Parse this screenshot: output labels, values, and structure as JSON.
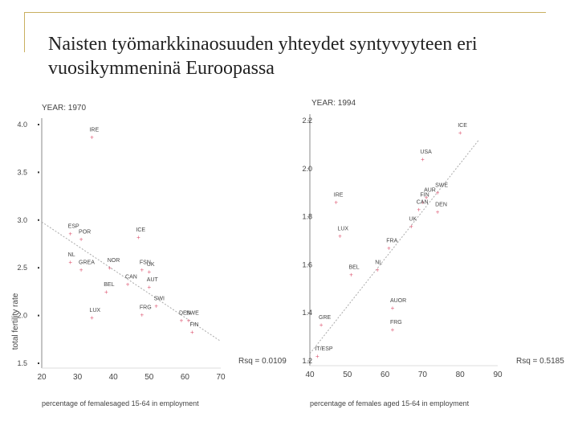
{
  "slide": {
    "title_line1": "Naisten työmarkkinaosuuden yhteydet syntyvyyteen eri",
    "title_line2": "vuosikymmeninä Euroopassa"
  },
  "chart_data": [
    {
      "type": "scatter",
      "title": "YEAR: 1970",
      "xlabel": "percentage of femalesaged 15-64 in employment",
      "ylabel": "total fertility rate",
      "xlim": [
        20,
        70
      ],
      "ylim": [
        1.5,
        4.0
      ],
      "xticks": [
        "20",
        "30",
        "40",
        "50",
        "60",
        "70"
      ],
      "yticks": [
        "1.5",
        "2.0",
        "2.5",
        "3.0",
        "3.5",
        "4.0"
      ],
      "annotation": "Rsq = 0.0109",
      "trend": [
        [
          20,
          2.98
        ],
        [
          70,
          1.73
        ]
      ],
      "points": [
        {
          "label": "IRE",
          "x": 34,
          "y": 3.87
        },
        {
          "label": "ESP",
          "x": 28,
          "y": 2.86
        },
        {
          "label": "POR",
          "x": 31,
          "y": 2.8
        },
        {
          "label": "ICE",
          "x": 47,
          "y": 2.82
        },
        {
          "label": "NL",
          "x": 28,
          "y": 2.56
        },
        {
          "label": "GREA",
          "x": 31,
          "y": 2.48
        },
        {
          "label": "NOR",
          "x": 39,
          "y": 2.5
        },
        {
          "label": "FSN",
          "x": 48,
          "y": 2.48
        },
        {
          "label": "UK",
          "x": 50,
          "y": 2.46
        },
        {
          "label": "AUT",
          "x": 50,
          "y": 2.3
        },
        {
          "label": "BEL",
          "x": 38,
          "y": 2.25
        },
        {
          "label": "CAN",
          "x": 44,
          "y": 2.33
        },
        {
          "label": "SWI",
          "x": 52,
          "y": 2.1
        },
        {
          "label": "FRG",
          "x": 48,
          "y": 2.01
        },
        {
          "label": "LUX",
          "x": 34,
          "y": 1.98
        },
        {
          "label": "DEN",
          "x": 59,
          "y": 1.95
        },
        {
          "label": "SWE",
          "x": 61,
          "y": 1.95
        },
        {
          "label": "FIN",
          "x": 62,
          "y": 1.83
        }
      ]
    },
    {
      "type": "scatter",
      "title": "YEAR: 1994",
      "xlabel": "percentage of females aged 15-64 in employment",
      "ylabel": "",
      "xlim": [
        40,
        90
      ],
      "ylim": [
        1.2,
        2.2
      ],
      "xticks": [
        "40",
        "50",
        "60",
        "70",
        "80",
        "90"
      ],
      "yticks": [
        "1.2",
        "1.4",
        "1.6",
        "1.8",
        "2.0",
        "2.2"
      ],
      "annotation": "Rsq = 0.5185",
      "trend": [
        [
          40,
          1.23
        ],
        [
          85,
          2.12
        ]
      ],
      "points": [
        {
          "label": "ICE",
          "x": 80,
          "y": 2.15
        },
        {
          "label": "USA",
          "x": 70,
          "y": 2.04
        },
        {
          "label": "SWE",
          "x": 74,
          "y": 1.9
        },
        {
          "label": "AUR",
          "x": 71,
          "y": 1.88
        },
        {
          "label": "FIN",
          "x": 70,
          "y": 1.86
        },
        {
          "label": "IRE",
          "x": 47,
          "y": 1.86
        },
        {
          "label": "CAN",
          "x": 69,
          "y": 1.83
        },
        {
          "label": "DEN",
          "x": 74,
          "y": 1.82
        },
        {
          "label": "UK",
          "x": 67,
          "y": 1.76
        },
        {
          "label": "LUX",
          "x": 48,
          "y": 1.72
        },
        {
          "label": "FRA",
          "x": 61,
          "y": 1.67
        },
        {
          "label": "NL",
          "x": 58,
          "y": 1.58
        },
        {
          "label": "BEL",
          "x": 51,
          "y": 1.56
        },
        {
          "label": "AUOR",
          "x": 62,
          "y": 1.42
        },
        {
          "label": "FRG",
          "x": 62,
          "y": 1.33
        },
        {
          "label": "GRE",
          "x": 43,
          "y": 1.35
        },
        {
          "label": "IT/ESP",
          "x": 42,
          "y": 1.22
        }
      ]
    }
  ],
  "colors": {
    "point": "#e0607a",
    "text": "#444444",
    "axis": "#888888",
    "trend": "#aaaaaa"
  }
}
